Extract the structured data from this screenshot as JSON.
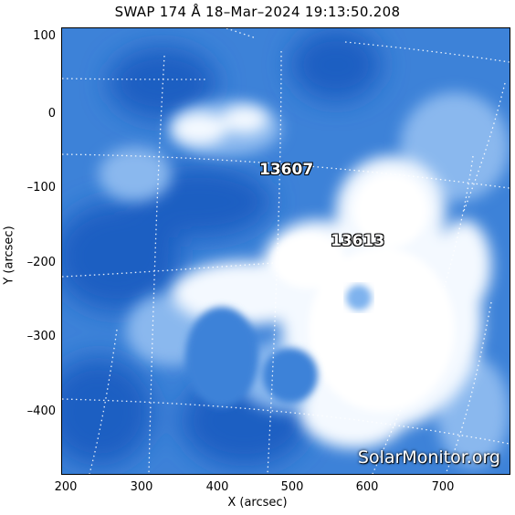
{
  "title": "SWAP 174 Å 18–Mar–2024 19:13:50.208",
  "axes": {
    "xlabel": "X (arcsec)",
    "ylabel": "Y (arcsec)",
    "x_ticks": [
      "200",
      "300",
      "400",
      "500",
      "600",
      "700"
    ],
    "y_ticks": [
      "100",
      "0",
      "–100",
      "–200",
      "–300",
      "–400"
    ]
  },
  "active_regions": [
    {
      "label": "13607"
    },
    {
      "label": "13613"
    }
  ],
  "watermark": "SolarMonitor.org",
  "colors": {
    "background": "#ffffff",
    "solar_base": "#3a7fd6",
    "bright": "#ffffff",
    "grid": "#ffffff"
  }
}
